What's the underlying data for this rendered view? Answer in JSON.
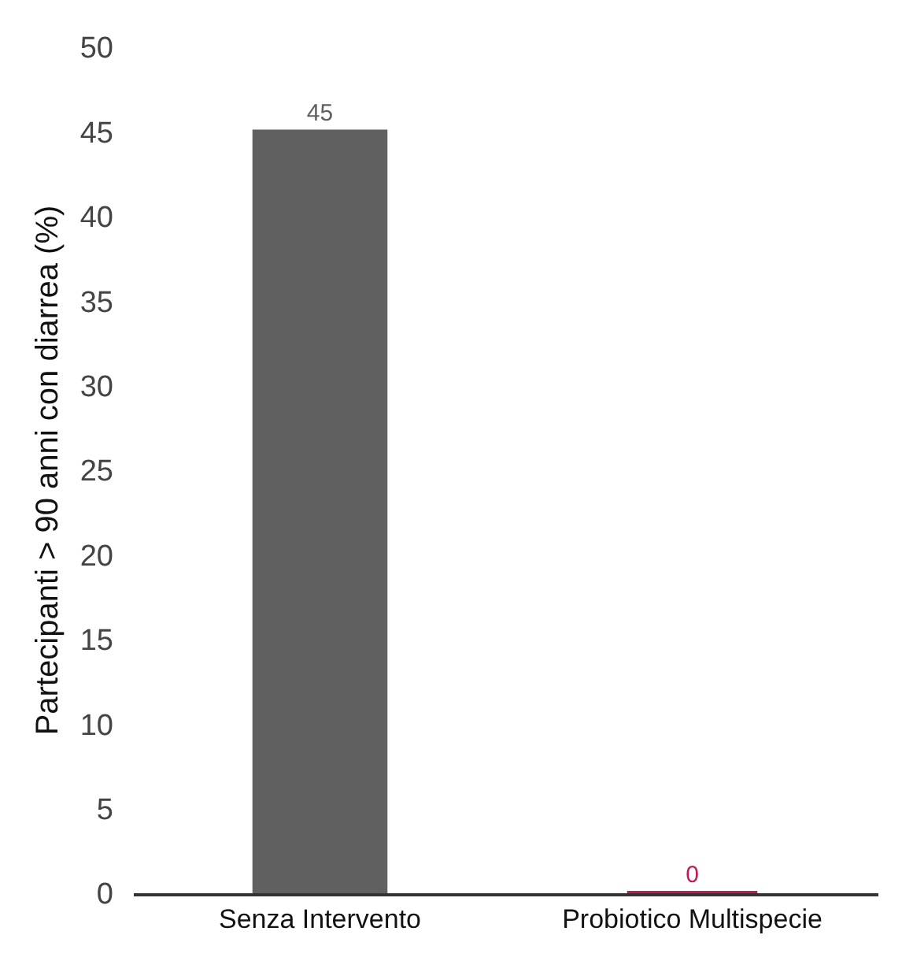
{
  "chart_data": {
    "type": "bar",
    "ylabel": "Partecipanti > 90 anni con diarrea (%)",
    "categories": [
      "Senza Intervento",
      "Probiotico Multispecie"
    ],
    "values": [
      45,
      0
    ],
    "colors": [
      "#606060",
      "#c2185b"
    ],
    "ylim": [
      0,
      50
    ],
    "yticks": [
      0,
      5,
      10,
      15,
      20,
      25,
      30,
      35,
      40,
      45,
      50
    ],
    "data_labels": true
  }
}
